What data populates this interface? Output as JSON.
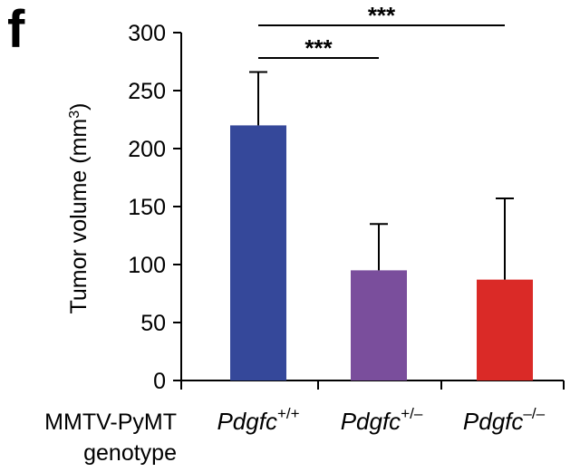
{
  "panel_letter": "f",
  "side_label_line1": "MMTV-PyMT",
  "side_label_line2": "genotype",
  "chart_data": {
    "type": "bar",
    "ylabel": "Tumor volume (mm",
    "ylabel_sup": "3",
    "ylabel_close": ")",
    "ylim": [
      0,
      300
    ],
    "yticks": [
      0,
      50,
      100,
      150,
      200,
      250,
      300
    ],
    "categories": [
      {
        "base": "Pdgfc",
        "sup": "+/+"
      },
      {
        "base": "Pdgfc",
        "sup": "+/–"
      },
      {
        "base": "Pdgfc",
        "sup": "–/–"
      }
    ],
    "values": [
      220,
      95,
      87
    ],
    "error_upper": [
      266,
      135,
      157
    ],
    "colors": [
      "#35489a",
      "#7a4e9c",
      "#da2a27"
    ],
    "significance": [
      {
        "from": 0,
        "to": 1,
        "label": "***"
      },
      {
        "from": 0,
        "to": 2,
        "label": "***"
      }
    ]
  }
}
